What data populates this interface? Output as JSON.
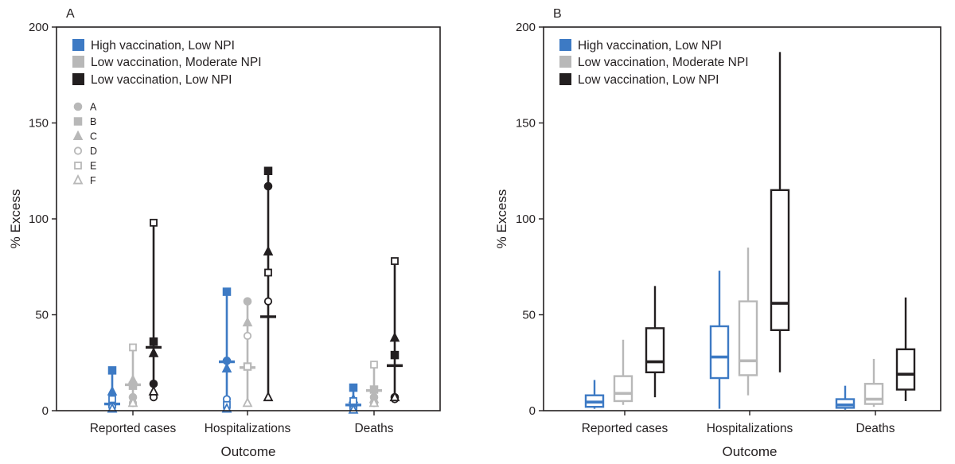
{
  "chart_data": [
    {
      "panel_label": "A",
      "type": "scatter",
      "title": "",
      "xlabel": "Outcome",
      "ylabel": "% Excess",
      "ylim": [
        0,
        200
      ],
      "yticks": [
        0,
        50,
        100,
        150,
        200
      ],
      "categories": [
        "Reported cases",
        "Hospitalizations",
        "Deaths"
      ],
      "legend_position": "top-left",
      "series": [
        {
          "name": "High vaccination, Low NPI",
          "color": "#3d7ac4",
          "points": {
            "A": [
              3,
              26,
              2
            ],
            "B": [
              21,
              62,
              12
            ],
            "C": [
              10,
              22,
              6
            ],
            "D": [
              2,
              6,
              1
            ],
            "E": [
              6,
              3,
              5
            ],
            "F": [
              1,
              1,
              0.5
            ]
          },
          "summary": [
            3.5,
            25.5,
            3
          ]
        },
        {
          "name": "Low vaccination, Moderate NPI",
          "color": "#b8b8b8",
          "points": {
            "A": [
              7,
              57,
              7
            ],
            "B": [
              13,
              23,
              11
            ],
            "C": [
              16,
              46,
              6
            ],
            "D": [
              4,
              39,
              4
            ],
            "E": [
              33,
              23,
              24
            ],
            "F": [
              4,
              4,
              4
            ]
          },
          "summary": [
            13.5,
            22.5,
            10.5
          ]
        },
        {
          "name": "Low vaccination, Low NPI",
          "color": "#231f20",
          "points": {
            "A": [
              14,
              117,
              7
            ],
            "B": [
              36,
              125,
              29
            ],
            "C": [
              30,
              83,
              38
            ],
            "D": [
              7,
              57,
              6
            ],
            "E": [
              98,
              72,
              78
            ],
            "F": [
              10,
              7,
              7
            ]
          },
          "summary": [
            33,
            49,
            23.5
          ]
        }
      ],
      "symbol_legend": [
        {
          "label": "A",
          "shape": "filled-circle"
        },
        {
          "label": "B",
          "shape": "filled-square"
        },
        {
          "label": "C",
          "shape": "filled-triangle"
        },
        {
          "label": "D",
          "shape": "open-circle"
        },
        {
          "label": "E",
          "shape": "open-square"
        },
        {
          "label": "F",
          "shape": "open-triangle"
        }
      ]
    },
    {
      "panel_label": "B",
      "type": "box",
      "title": "",
      "xlabel": "Outcome",
      "ylabel": "% Excess",
      "ylim": [
        0,
        200
      ],
      "yticks": [
        0,
        50,
        100,
        150,
        200
      ],
      "categories": [
        "Reported cases",
        "Hospitalizations",
        "Deaths"
      ],
      "legend_position": "top-left",
      "series": [
        {
          "name": "High vaccination, Low NPI",
          "color": "#3d7ac4",
          "boxes": [
            {
              "min": 1,
              "q1": 2,
              "median": 4.5,
              "q3": 8,
              "max": 16
            },
            {
              "min": 1,
              "q1": 17,
              "median": 28,
              "q3": 44,
              "max": 73
            },
            {
              "min": 0.5,
              "q1": 1.5,
              "median": 3,
              "q3": 6,
              "max": 13
            }
          ]
        },
        {
          "name": "Low vaccination, Moderate NPI",
          "color": "#b8b8b8",
          "boxes": [
            {
              "min": 3,
              "q1": 5,
              "median": 9,
              "q3": 18,
              "max": 37
            },
            {
              "min": 8,
              "q1": 18.5,
              "median": 26,
              "q3": 57,
              "max": 85
            },
            {
              "min": 2,
              "q1": 3.5,
              "median": 6,
              "q3": 14,
              "max": 27
            }
          ]
        },
        {
          "name": "Low vaccination, Low NPI",
          "color": "#231f20",
          "boxes": [
            {
              "min": 7,
              "q1": 20,
              "median": 25.5,
              "q3": 43,
              "max": 65
            },
            {
              "min": 20,
              "q1": 42,
              "median": 56,
              "q3": 115,
              "max": 187
            },
            {
              "min": 5,
              "q1": 11,
              "median": 19,
              "q3": 32,
              "max": 59
            }
          ]
        }
      ]
    }
  ]
}
